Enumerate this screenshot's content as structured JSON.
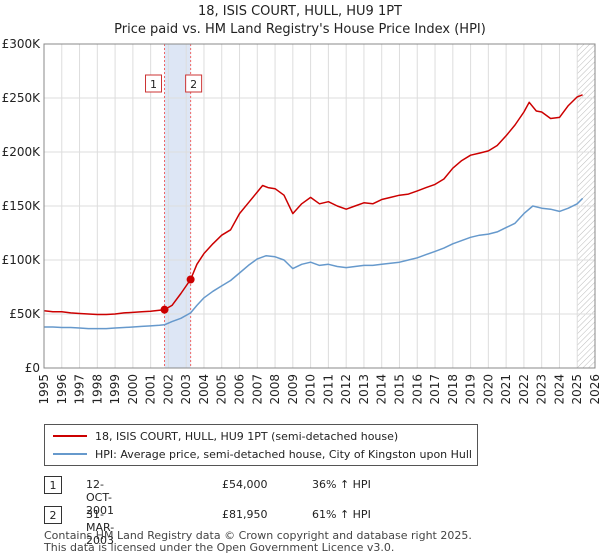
{
  "header": {
    "title": "18, ISIS COURT, HULL, HU9 1PT",
    "subtitle": "Price paid vs. HM Land Registry's House Price Index (HPI)"
  },
  "colors": {
    "price_line": "#cc0000",
    "hpi_line": "#6699cc",
    "shade": "#dde6f5",
    "marker_line": "#ee6666",
    "grid": "#dddddd"
  },
  "chart_data": {
    "type": "line",
    "title": "18, ISIS COURT, HULL, HU9 1PT",
    "subtitle": "Price paid vs. HM Land Registry's House Price Index (HPI)",
    "xlabel": "",
    "ylabel": "",
    "xlim": [
      1995,
      2026
    ],
    "ylim": [
      0,
      300000
    ],
    "x_ticks": [
      1995,
      1996,
      1997,
      1998,
      1999,
      2000,
      2001,
      2002,
      2003,
      2004,
      2005,
      2006,
      2007,
      2008,
      2009,
      2010,
      2011,
      2012,
      2013,
      2014,
      2015,
      2016,
      2017,
      2018,
      2019,
      2020,
      2021,
      2022,
      2023,
      2024,
      2025,
      2026
    ],
    "y_ticks": [
      0,
      50000,
      100000,
      150000,
      200000,
      250000,
      300000
    ],
    "y_tick_labels": [
      "£0",
      "£50K",
      "£100K",
      "£150K",
      "£200K",
      "£250K",
      "£300K"
    ],
    "grid": true,
    "shaded_range": [
      2001.78,
      2003.25
    ],
    "forecast_hatch_from": 2025.0,
    "series": [
      {
        "name": "18, ISIS COURT, HULL, HU9 1PT (semi-detached house)",
        "x": [
          1995,
          1995.5,
          1996,
          1996.5,
          1997,
          1997.5,
          1998,
          1998.5,
          1999,
          1999.5,
          2000,
          2000.5,
          2001,
          2001.5,
          2001.78,
          2002.2,
          2002.7,
          2003.25,
          2003.6,
          2004,
          2004.5,
          2005,
          2005.5,
          2006,
          2006.5,
          2007,
          2007.3,
          2007.6,
          2008,
          2008.5,
          2009,
          2009.5,
          2010,
          2010.5,
          2011,
          2011.5,
          2012,
          2012.5,
          2013,
          2013.5,
          2014,
          2014.5,
          2015,
          2015.5,
          2016,
          2016.5,
          2017,
          2017.5,
          2018,
          2018.5,
          2019,
          2019.5,
          2020,
          2020.5,
          2021,
          2021.5,
          2022,
          2022.3,
          2022.7,
          2023,
          2023.5,
          2024,
          2024.5,
          2025,
          2025.3
        ],
        "values": [
          53000,
          52000,
          52000,
          51000,
          50500,
          50000,
          49500,
          49500,
          50000,
          51000,
          51500,
          52000,
          52500,
          53500,
          54000,
          58000,
          69000,
          81950,
          96000,
          106000,
          115000,
          123000,
          128000,
          143000,
          153000,
          163000,
          169000,
          167000,
          166000,
          160000,
          143000,
          152000,
          158000,
          152000,
          154000,
          150000,
          147000,
          150000,
          153000,
          152000,
          156000,
          158000,
          160000,
          161000,
          164000,
          167000,
          170000,
          175000,
          185000,
          192000,
          197000,
          199000,
          201000,
          206000,
          215000,
          225000,
          237000,
          246000,
          238000,
          237000,
          231000,
          232000,
          243000,
          251000,
          253000
        ]
      },
      {
        "name": "HPI: Average price, semi-detached house, City of Kingston upon Hull",
        "x": [
          1995,
          1995.5,
          1996,
          1996.5,
          1997,
          1997.5,
          1998,
          1998.5,
          1999,
          1999.5,
          2000,
          2000.5,
          2001,
          2001.5,
          2001.78,
          2002.2,
          2002.7,
          2003.25,
          2003.6,
          2004,
          2004.5,
          2005,
          2005.5,
          2006,
          2006.5,
          2007,
          2007.5,
          2008,
          2008.5,
          2009,
          2009.5,
          2010,
          2010.5,
          2011,
          2011.5,
          2012,
          2012.5,
          2013,
          2013.5,
          2014,
          2014.5,
          2015,
          2015.5,
          2016,
          2016.5,
          2017,
          2017.5,
          2018,
          2018.5,
          2019,
          2019.5,
          2020,
          2020.5,
          2021,
          2021.5,
          2022,
          2022.5,
          2023,
          2023.5,
          2024,
          2024.5,
          2025,
          2025.3
        ],
        "values": [
          38000,
          38000,
          37500,
          37500,
          37000,
          36500,
          36500,
          36500,
          37000,
          37500,
          38000,
          38500,
          39000,
          39500,
          40000,
          43000,
          46000,
          51000,
          58000,
          65000,
          71000,
          76000,
          81000,
          88000,
          95000,
          101000,
          104000,
          103000,
          100000,
          92000,
          96000,
          98000,
          95000,
          96000,
          94000,
          93000,
          94000,
          95000,
          95000,
          96000,
          97000,
          98000,
          100000,
          102000,
          105000,
          108000,
          111000,
          115000,
          118000,
          121000,
          123000,
          124000,
          126000,
          130000,
          134000,
          143000,
          150000,
          148000,
          147000,
          145000,
          148000,
          152000,
          157000
        ]
      }
    ],
    "transactions": [
      {
        "label": "1",
        "x": 2001.78,
        "value": 54000
      },
      {
        "label": "2",
        "x": 2003.25,
        "value": 81950
      }
    ]
  },
  "legend": {
    "price_label": "18, ISIS COURT, HULL, HU9 1PT (semi-detached house)",
    "hpi_label": "HPI: Average price, semi-detached house, City of Kingston upon Hull"
  },
  "transactions_table": [
    {
      "num": "1",
      "date": "12-OCT-2001",
      "price": "£54,000",
      "hpi": "36% ↑ HPI"
    },
    {
      "num": "2",
      "date": "31-MAR-2003",
      "price": "£81,950",
      "hpi": "61% ↑ HPI"
    }
  ],
  "footer": {
    "line1": "Contains HM Land Registry data © Crown copyright and database right 2025.",
    "line2": "This data is licensed under the Open Government Licence v3.0."
  }
}
